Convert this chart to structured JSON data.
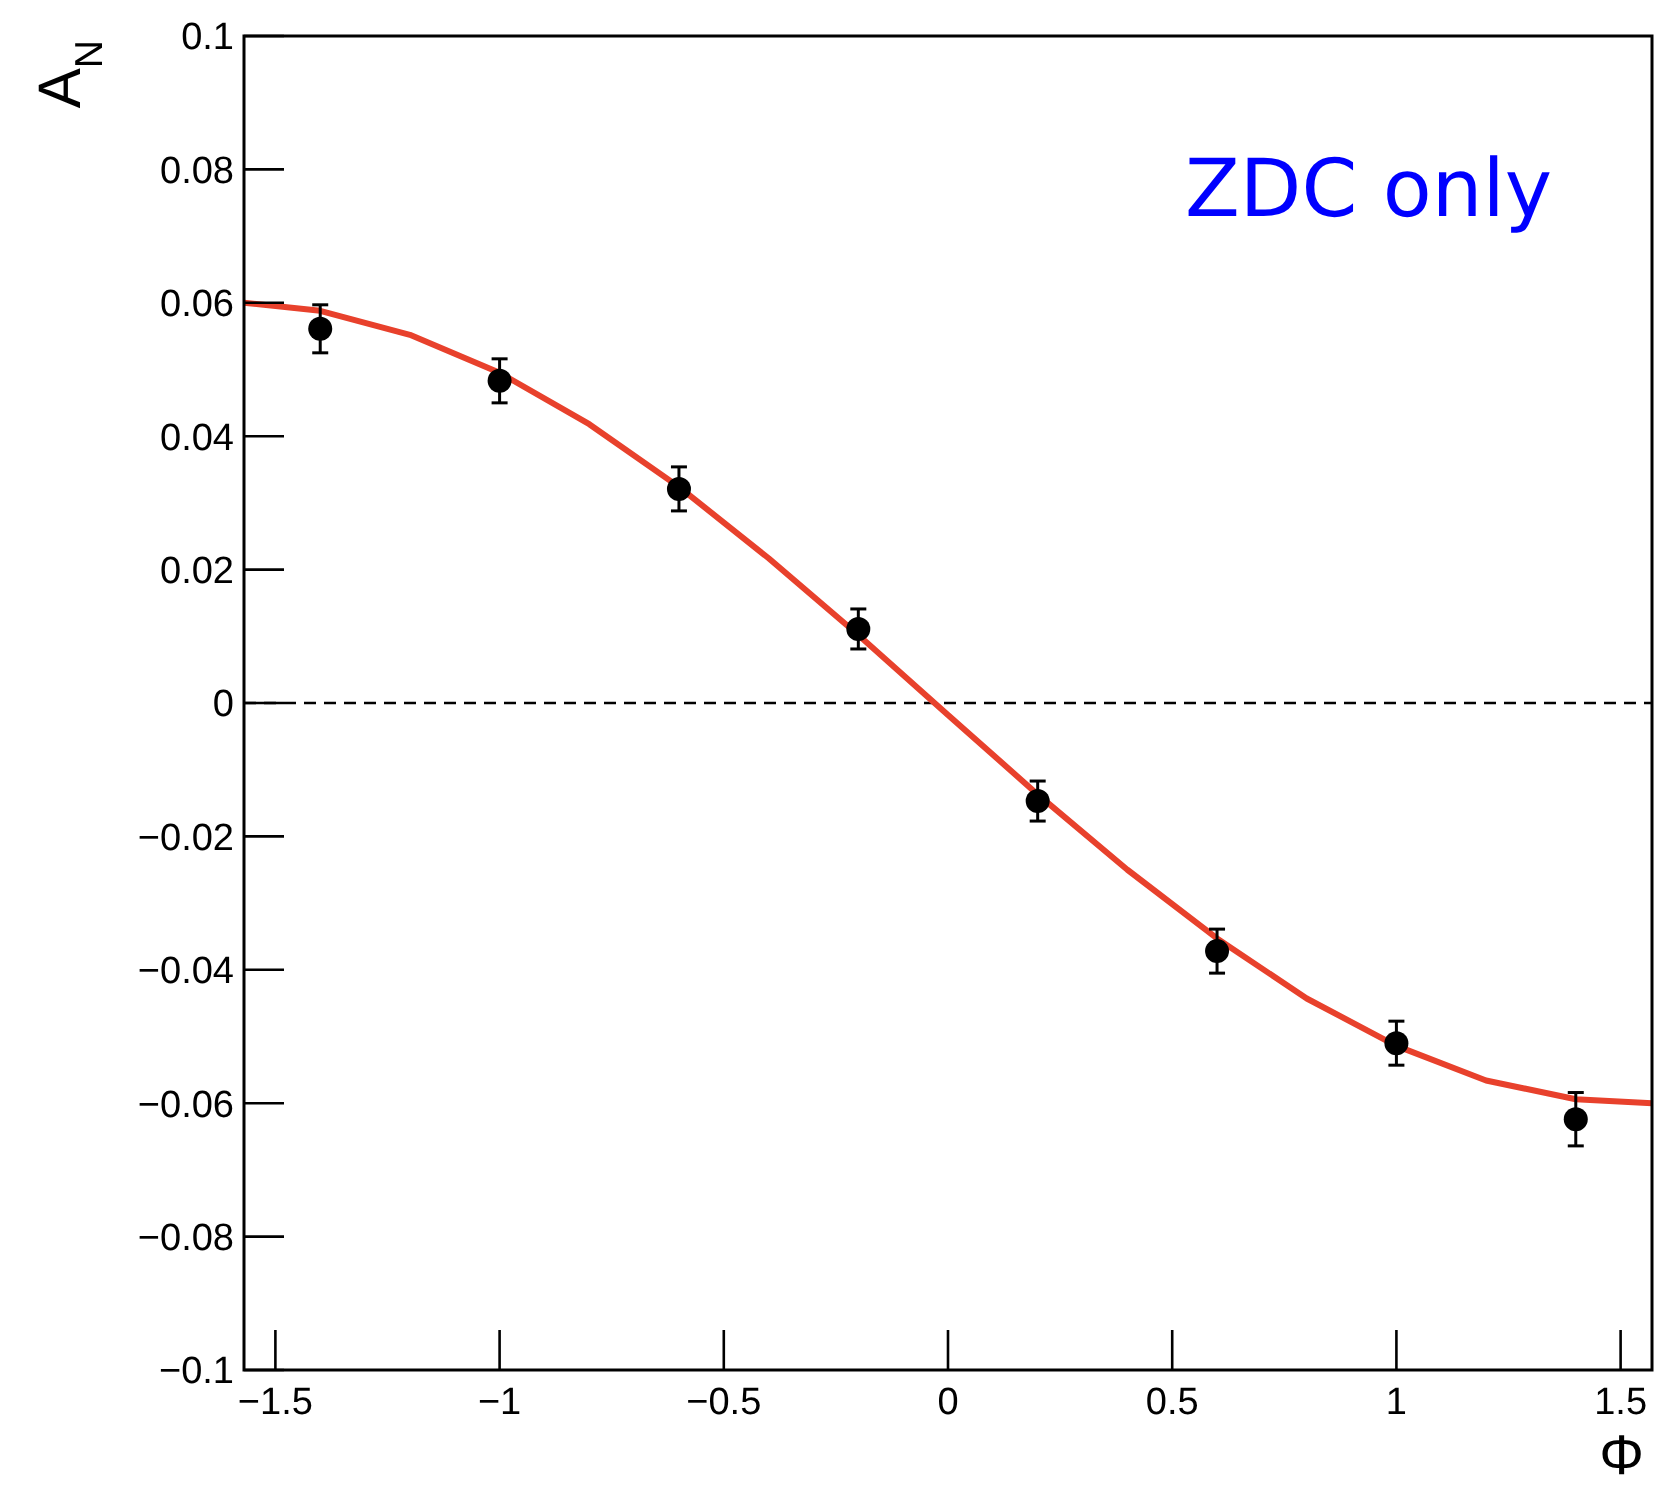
{
  "chart_data": {
    "type": "scatter",
    "xlabel": "Φ",
    "ylabel": "A$_{N}$",
    "annotations": [
      "ZDC only"
    ],
    "xlim": [
      -1.57,
      1.57
    ],
    "xticks": [
      {
        "value": -1.5,
        "label": "−1.5"
      },
      {
        "value": -1,
        "label": "−1"
      },
      {
        "value": -0.5,
        "label": "−0.5"
      },
      0,
      0.5,
      1,
      1.5
    ],
    "ylim": [
      -0.1,
      0.1
    ],
    "yticks": [
      {
        "value": -0.1,
        "label": "−0.1"
      },
      {
        "value": -0.08,
        "label": "−0.08"
      },
      {
        "value": -0.06,
        "label": "−0.06"
      },
      {
        "value": -0.04,
        "label": "−0.04"
      },
      {
        "value": -0.02,
        "label": "−0.02"
      },
      0,
      0.02,
      0.04,
      0.06,
      0.08,
      0.1
    ],
    "grid": false,
    "ref_lines": [
      {
        "axis": "y",
        "value": 0,
        "line_style": "dashed",
        "color": "#000000"
      }
    ],
    "series": [
      {
        "color": "#000000",
        "marker": "circle",
        "x": [
          -1.4,
          -1.0,
          -0.6,
          -0.2,
          0.2,
          0.6,
          1.0,
          1.4
        ],
        "values": [
          0.0561,
          0.0483,
          0.0321,
          0.0111,
          -0.0147,
          -0.0372,
          -0.051,
          -0.0624
        ],
        "errors": [
          0.0036,
          0.0033,
          0.0033,
          0.003,
          0.003,
          0.0033,
          0.0033,
          0.004
        ]
      },
      {
        "type": "line",
        "color": "#e8412c",
        "line_style": "solid",
        "x": [
          -1.57,
          -1.4,
          -1.2,
          -1.0,
          -0.8,
          -0.6,
          -0.4,
          -0.2,
          0,
          0.2,
          0.4,
          0.6,
          0.8,
          1.0,
          1.2,
          1.4,
          1.57
        ],
        "values": [
          0.06,
          0.0588,
          0.0552,
          0.0495,
          0.0418,
          0.0324,
          0.0217,
          0.0102,
          -0.0018,
          -0.0137,
          -0.025,
          -0.0353,
          -0.0443,
          -0.0514,
          -0.0566,
          -0.0594,
          -0.06
        ]
      }
    ]
  }
}
